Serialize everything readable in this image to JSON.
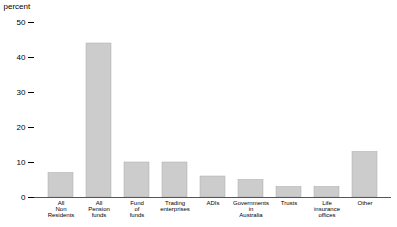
{
  "chart_data": {
    "type": "bar",
    "ylabel": "percent",
    "categories": [
      "All\nNon\nResidents",
      "All\nPension\nfunds",
      "Fund\nof\nfunds",
      "Trading\nenterprises",
      "ADIs",
      "Governments\nin\nAustralia",
      "Trusts",
      "Life\ninsurance\noffices",
      "Other"
    ],
    "values": [
      7,
      44,
      10,
      10,
      6,
      5,
      3,
      3,
      13
    ],
    "color": "#cccccc",
    "ylim": [
      0,
      50
    ],
    "yticks": [
      0,
      10,
      20,
      30,
      40,
      50
    ],
    "grid": false
  }
}
